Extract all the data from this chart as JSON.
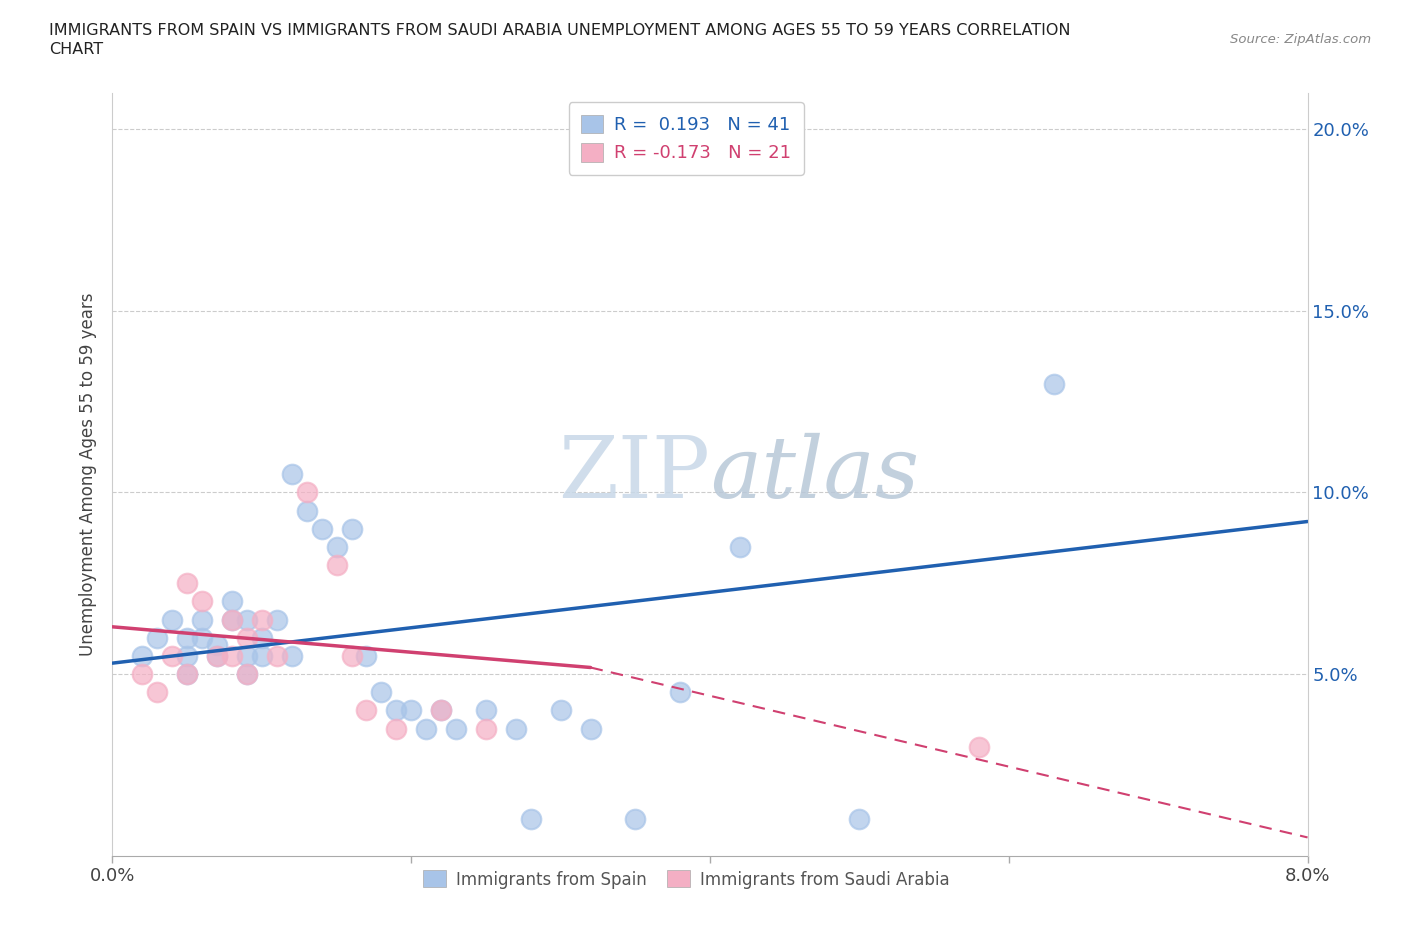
{
  "title": "IMMIGRANTS FROM SPAIN VS IMMIGRANTS FROM SAUDI ARABIA UNEMPLOYMENT AMONG AGES 55 TO 59 YEARS CORRELATION\nCHART",
  "source": "Source: ZipAtlas.com",
  "ylabel": "Unemployment Among Ages 55 to 59 years",
  "xlim": [
    0.0,
    0.08
  ],
  "ylim": [
    0.0,
    0.21
  ],
  "R_spain": 0.193,
  "N_spain": 41,
  "R_saudi": -0.173,
  "N_saudi": 21,
  "color_spain": "#a8c4e8",
  "color_saudi": "#f4afc4",
  "line_color_spain": "#2060b0",
  "line_color_saudi": "#d04070",
  "watermark_color": "#c8d8e8",
  "spain_x": [
    0.002,
    0.003,
    0.004,
    0.005,
    0.005,
    0.005,
    0.006,
    0.006,
    0.007,
    0.007,
    0.008,
    0.008,
    0.009,
    0.009,
    0.009,
    0.01,
    0.01,
    0.011,
    0.012,
    0.012,
    0.013,
    0.014,
    0.015,
    0.016,
    0.017,
    0.018,
    0.019,
    0.02,
    0.021,
    0.022,
    0.023,
    0.025,
    0.027,
    0.028,
    0.03,
    0.032,
    0.035,
    0.038,
    0.042,
    0.05,
    0.063
  ],
  "spain_y": [
    0.055,
    0.06,
    0.065,
    0.06,
    0.055,
    0.05,
    0.065,
    0.06,
    0.058,
    0.055,
    0.07,
    0.065,
    0.065,
    0.055,
    0.05,
    0.06,
    0.055,
    0.065,
    0.105,
    0.055,
    0.095,
    0.09,
    0.085,
    0.09,
    0.055,
    0.045,
    0.04,
    0.04,
    0.035,
    0.04,
    0.035,
    0.04,
    0.035,
    0.01,
    0.04,
    0.035,
    0.01,
    0.045,
    0.085,
    0.01,
    0.13
  ],
  "saudi_x": [
    0.002,
    0.003,
    0.004,
    0.005,
    0.005,
    0.006,
    0.007,
    0.008,
    0.008,
    0.009,
    0.009,
    0.01,
    0.011,
    0.013,
    0.015,
    0.016,
    0.017,
    0.019,
    0.022,
    0.025,
    0.058
  ],
  "saudi_y": [
    0.05,
    0.045,
    0.055,
    0.075,
    0.05,
    0.07,
    0.055,
    0.055,
    0.065,
    0.05,
    0.06,
    0.065,
    0.055,
    0.1,
    0.08,
    0.055,
    0.04,
    0.035,
    0.04,
    0.035,
    0.03
  ],
  "line_spain_x0": 0.0,
  "line_spain_y0": 0.053,
  "line_spain_x1": 0.08,
  "line_spain_y1": 0.092,
  "line_saudi_x0": 0.0,
  "line_saudi_y0": 0.063,
  "line_saudi_x1": 0.08,
  "line_saudi_y1": 0.035,
  "line_saudi_dash_x1": 0.08,
  "line_saudi_dash_y1": 0.005
}
